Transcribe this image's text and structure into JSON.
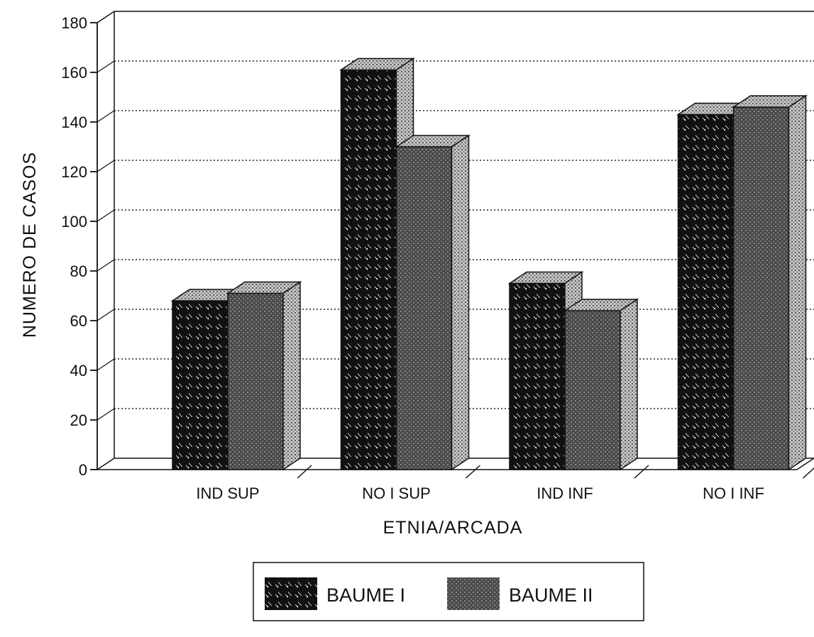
{
  "chart_data": {
    "type": "bar",
    "style": "3d-clustered",
    "categories": [
      "IND SUP",
      "NO I SUP",
      "IND INF",
      "NO I INF"
    ],
    "series": [
      {
        "name": "BAUME I",
        "pattern": "diagonal-hatch",
        "values": [
          68,
          161,
          75,
          143
        ]
      },
      {
        "name": "BAUME II",
        "pattern": "dark-stipple",
        "values": [
          71,
          130,
          64,
          146
        ]
      }
    ],
    "xlabel": "ETNIA/ARCADA",
    "ylabel": "NUMERO DE CASOS",
    "ylim": [
      0,
      180
    ],
    "yticks": [
      0,
      20,
      40,
      60,
      80,
      100,
      120,
      140,
      160,
      180
    ],
    "grid": "dotted-horizontal",
    "legend_position": "bottom-center"
  }
}
